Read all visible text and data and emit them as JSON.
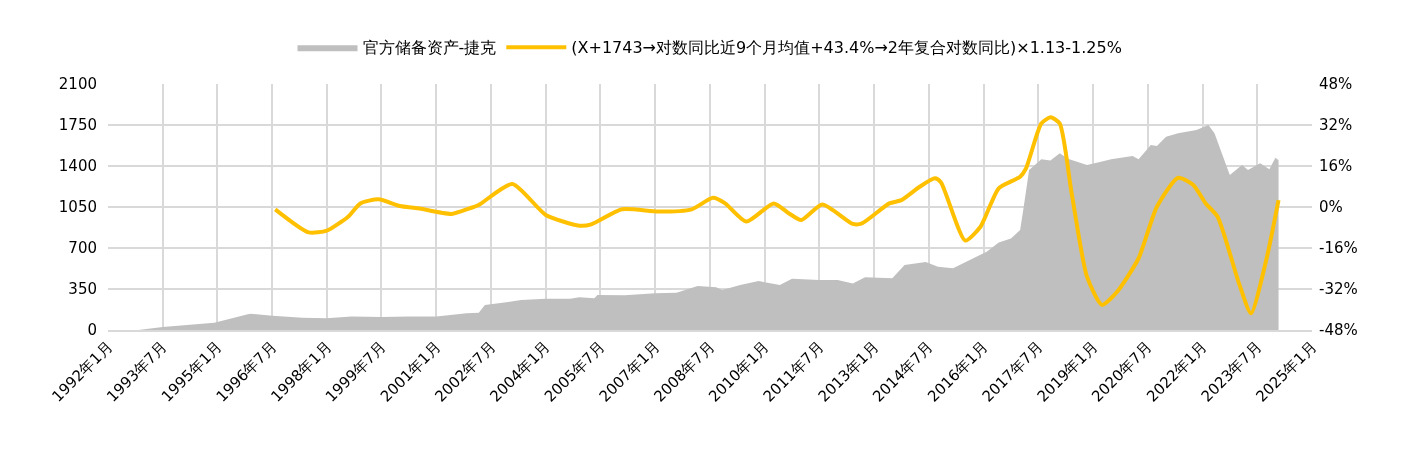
{
  "chart_data": {
    "type": "area",
    "legend": "top",
    "grid": true,
    "xlim": [
      "1992-01",
      "2025-01"
    ],
    "xticks": [
      {
        "value": "1992-01",
        "label": "1992年1月"
      },
      {
        "value": "1993-07",
        "label": "1993年7月"
      },
      {
        "value": "1995-01",
        "label": "1995年1月"
      },
      {
        "value": "1996-07",
        "label": "1996年7月"
      },
      {
        "value": "1998-01",
        "label": "1998年1月"
      },
      {
        "value": "1999-07",
        "label": "1999年7月"
      },
      {
        "value": "2001-01",
        "label": "2001年1月"
      },
      {
        "value": "2002-07",
        "label": "2002年7月"
      },
      {
        "value": "2004-01",
        "label": "2004年1月"
      },
      {
        "value": "2005-07",
        "label": "2005年7月"
      },
      {
        "value": "2007-01",
        "label": "2007年1月"
      },
      {
        "value": "2008-07",
        "label": "2008年7月"
      },
      {
        "value": "2010-01",
        "label": "2010年1月"
      },
      {
        "value": "2011-07",
        "label": "2011年7月"
      },
      {
        "value": "2013-01",
        "label": "2013年1月"
      },
      {
        "value": "2014-07",
        "label": "2014年7月"
      },
      {
        "value": "2016-01",
        "label": "2016年1月"
      },
      {
        "value": "2017-07",
        "label": "2017年7月"
      },
      {
        "value": "2019-01",
        "label": "2019年1月"
      },
      {
        "value": "2020-07",
        "label": "2020年7月"
      },
      {
        "value": "2022-01",
        "label": "2022年1月"
      },
      {
        "value": "2023-07",
        "label": "2023年7月"
      },
      {
        "value": "2025-01",
        "label": "2025年1月"
      }
    ],
    "ylim": [
      0,
      2100
    ],
    "yticks": [
      0,
      350,
      700,
      1050,
      1400,
      1750,
      2100
    ],
    "y2lim": [
      -48,
      48
    ],
    "y2ticks": [
      {
        "value": -48,
        "label": "-48%"
      },
      {
        "value": -32,
        "label": "-32%"
      },
      {
        "value": -16,
        "label": "-16%"
      },
      {
        "value": 0,
        "label": "0%"
      },
      {
        "value": 16,
        "label": "16%"
      },
      {
        "value": 32,
        "label": "32%"
      },
      {
        "value": 48,
        "label": "48%"
      }
    ],
    "series": [
      {
        "name": "官方储备资产-捷克",
        "color": "#bfbfbf",
        "x": [
          "1992-11",
          "1993-07",
          "1994-12",
          "1995-11",
          "1995-12",
          "1996-07",
          "1997-05",
          "1998-01",
          "1998-09",
          "1999-07",
          "2000-04",
          "2001-01",
          "2001-11",
          "2002-03",
          "2002-05",
          "2002-12",
          "2003-05",
          "2004-01",
          "2004-09",
          "2004-12",
          "2005-05",
          "2005-06",
          "2006-03",
          "2007-01",
          "2007-08",
          "2008-03",
          "2008-09",
          "2008-11",
          "2009-05",
          "2009-11",
          "2010-06",
          "2010-10",
          "2011-07",
          "2012-01",
          "2012-06",
          "2012-10",
          "2013-07",
          "2013-11",
          "2014-06",
          "2014-10",
          "2015-03",
          "2015-08",
          "2016-02",
          "2016-06",
          "2016-10",
          "2017-01",
          "2017-02",
          "2017-04",
          "2017-08",
          "2017-11",
          "2018-02",
          "2018-05",
          "2018-11",
          "2019-03",
          "2019-07",
          "2020-02",
          "2020-04",
          "2020-08",
          "2020-10",
          "2021-01",
          "2021-05",
          "2021-11",
          "2022-03",
          "2022-05",
          "2022-07",
          "2022-10",
          "2023-02",
          "2023-04",
          "2023-08",
          "2023-11",
          "2024-01",
          "2024-02"
        ],
        "values": [
          0,
          25,
          62,
          134,
          139,
          122,
          105,
          100,
          115,
          110,
          115,
          115,
          142,
          148,
          213,
          236,
          256,
          267,
          267,
          279,
          270,
          299,
          296,
          313,
          318,
          376,
          364,
          341,
          384,
          418,
          384,
          438,
          427,
          427,
          398,
          450,
          441,
          555,
          580,
          541,
          528,
          591,
          669,
          746,
          782,
          854,
          1024,
          1366,
          1457,
          1446,
          1508,
          1460,
          1409,
          1432,
          1457,
          1485,
          1457,
          1579,
          1571,
          1650,
          1679,
          1707,
          1750,
          1679,
          1537,
          1323,
          1409,
          1366,
          1423,
          1372,
          1471,
          1450
        ]
      },
      {
        "name": "(X+1743→对数同比近9个月均值+43.4%→2年复合对数同比)×1.13-1.25%",
        "type": "line",
        "axis": "y2",
        "color": "#ffc000",
        "line_style": "solid",
        "marker": "none",
        "x": [
          "1996-08",
          "1997-07",
          "1998-01",
          "1998-08",
          "1998-12",
          "1999-06",
          "2000-01",
          "2000-07",
          "2001-06",
          "2001-12",
          "2002-03",
          "2003-02",
          "2004-01",
          "2004-12",
          "2005-04",
          "2006-02",
          "2007-02",
          "2008-01",
          "2008-08",
          "2008-12",
          "2009-07",
          "2010-04",
          "2010-09",
          "2011-01",
          "2011-08",
          "2012-06",
          "2012-09",
          "2013-06",
          "2013-10",
          "2014-04",
          "2014-09",
          "2014-11",
          "2015-07",
          "2015-12",
          "2016-06",
          "2017-01",
          "2017-03",
          "2017-08",
          "2017-11",
          "2018-02",
          "2018-06",
          "2018-11",
          "2019-04",
          "2019-09",
          "2020-04",
          "2020-10",
          "2021-05",
          "2021-10",
          "2022-02",
          "2022-06",
          "2023-01",
          "2023-05",
          "2023-10",
          "2024-02"
        ],
        "values": [
          -0.9,
          -9.9,
          -9.2,
          -3.8,
          1.4,
          3.0,
          0.4,
          -0.5,
          -2.7,
          -0.5,
          0.8,
          9.0,
          -3.1,
          -7.3,
          -6.8,
          -0.9,
          -1.8,
          -0.9,
          3.6,
          1.4,
          -5.7,
          1.4,
          -2.5,
          -5.1,
          1.0,
          -6.6,
          -6.4,
          1.4,
          2.7,
          7.9,
          11.2,
          9.6,
          -13.1,
          -7.7,
          7.3,
          11.8,
          15.1,
          32.6,
          35.0,
          32.6,
          5.3,
          -27.2,
          -38.2,
          -33.0,
          -20.0,
          0.1,
          11.4,
          8.6,
          1.4,
          -3.8,
          -29.8,
          -41.5,
          -20.7,
          2.7
        ]
      }
    ]
  }
}
